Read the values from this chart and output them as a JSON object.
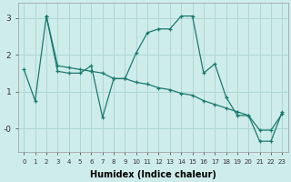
{
  "xlabel": "Humidex (Indice chaleur)",
  "background_color": "#ceecea",
  "grid_color": "#aed8d4",
  "line_color": "#1a7a6e",
  "line1_x": [
    0,
    1,
    2,
    3,
    4,
    5,
    6,
    7,
    8,
    9,
    10,
    11,
    12,
    13,
    14,
    15,
    16,
    17,
    18,
    19,
    20,
    21,
    22,
    23
  ],
  "line1_y": [
    1.6,
    0.75,
    3.05,
    1.55,
    1.5,
    1.5,
    1.7,
    0.3,
    1.35,
    1.35,
    2.05,
    2.6,
    2.7,
    2.7,
    3.05,
    3.05,
    1.5,
    1.75,
    0.85,
    0.35,
    0.35,
    -0.05,
    -0.05,
    0.4
  ],
  "line2_x": [
    2,
    3,
    4,
    5,
    6,
    7,
    8,
    9,
    10,
    11,
    12,
    13,
    14,
    15,
    16,
    17,
    18,
    19,
    20,
    21,
    22,
    23
  ],
  "line2_y": [
    3.05,
    1.7,
    1.65,
    1.6,
    1.55,
    1.5,
    1.35,
    1.35,
    1.25,
    1.2,
    1.1,
    1.05,
    0.95,
    0.9,
    0.75,
    0.65,
    0.55,
    0.45,
    0.35,
    -0.35,
    -0.35,
    0.45
  ],
  "xlim": [
    -0.5,
    23.5
  ],
  "ylim": [
    -0.65,
    3.4
  ],
  "yticks": [
    0,
    1,
    2,
    3
  ],
  "ytick_labels": [
    "-0",
    "1",
    "2",
    "3"
  ],
  "xticks": [
    0,
    1,
    2,
    3,
    4,
    5,
    6,
    7,
    8,
    9,
    10,
    11,
    12,
    13,
    14,
    15,
    16,
    17,
    18,
    19,
    20,
    21,
    22,
    23
  ]
}
